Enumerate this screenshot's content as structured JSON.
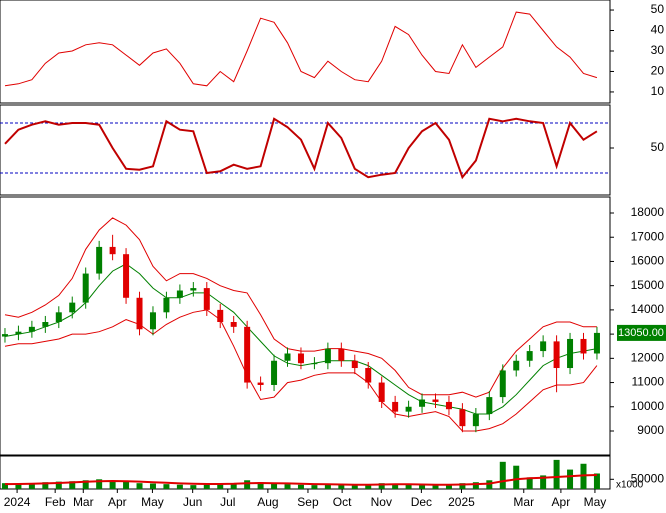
{
  "chart_data": [
    {
      "type": "line",
      "color": "#e00000",
      "values": [
        13,
        14,
        16,
        24,
        29,
        30,
        33,
        34,
        33,
        28,
        23,
        29,
        31,
        24,
        14,
        13,
        20,
        15,
        30,
        46,
        44,
        34,
        20,
        17,
        25,
        20,
        16,
        15,
        25,
        42,
        38,
        28,
        20,
        19,
        33,
        22,
        27,
        32,
        49,
        48,
        40,
        32,
        27,
        19,
        17
      ],
      "ylim": [
        4.6,
        54.9
      ],
      "yticks": [
        10,
        20,
        30,
        40,
        50
      ]
    },
    {
      "type": "line",
      "color": "#c00000",
      "values": [
        55,
        72,
        78,
        82,
        78,
        80,
        80,
        78,
        50,
        25,
        24,
        28,
        82,
        72,
        70,
        20,
        22,
        30,
        25,
        28,
        85,
        75,
        60,
        25,
        80,
        62,
        25,
        15,
        18,
        20,
        50,
        70,
        80,
        60,
        15,
        35,
        85,
        82,
        85,
        82,
        80,
        28,
        80,
        60,
        70
      ],
      "ylim": [
        -6.4,
        101.6
      ],
      "yticks": [
        50
      ],
      "levels": [
        80,
        20
      ],
      "level_color": "#0000c0"
    },
    {
      "type": "candlestick",
      "up_color": "#008000",
      "down_color": "#e00000",
      "open": [
        12900,
        13000,
        13100,
        13300,
        13500,
        13900,
        14300,
        15500,
        16600,
        16300,
        14500,
        13200,
        13900,
        14500,
        14800,
        14900,
        14000,
        13500,
        13300,
        11000,
        10900,
        11900,
        12200,
        11800,
        11800,
        12400,
        11900,
        11600,
        11000,
        10200,
        9800,
        10000,
        10300,
        10200,
        9900,
        9200,
        9700,
        10400,
        11500,
        11900,
        12300,
        12700,
        11600,
        12800,
        12200
      ],
      "high": [
        13250,
        13350,
        13550,
        13750,
        14150,
        14550,
        15750,
        16850,
        17100,
        16550,
        14750,
        14150,
        14750,
        15050,
        15150,
        15150,
        14250,
        13750,
        13550,
        11250,
        12150,
        12450,
        12450,
        12050,
        12650,
        12650,
        12150,
        11850,
        11250,
        10450,
        10250,
        10550,
        10550,
        10450,
        10150,
        9950,
        10650,
        11750,
        12150,
        12550,
        12950,
        12950,
        13050,
        13050,
        13300
      ],
      "low": [
        12650,
        12750,
        12850,
        13050,
        13250,
        13650,
        14050,
        15250,
        16050,
        14250,
        12950,
        12950,
        13650,
        14250,
        14550,
        13750,
        13250,
        13050,
        10750,
        10650,
        10650,
        11650,
        11550,
        11550,
        11550,
        11650,
        11350,
        10750,
        9950,
        9550,
        9550,
        9750,
        9950,
        9650,
        8950,
        8950,
        9450,
        10150,
        11250,
        11650,
        12050,
        10600,
        11350,
        11950,
        11950
      ],
      "close": [
        13000,
        13100,
        13300,
        13500,
        13900,
        14300,
        15500,
        16600,
        16300,
        14500,
        13200,
        13900,
        14500,
        14800,
        14900,
        14000,
        13500,
        13300,
        11000,
        10900,
        11900,
        12200,
        11800,
        11800,
        12400,
        11900,
        11600,
        11000,
        10200,
        9800,
        10000,
        10300,
        10200,
        9900,
        9200,
        9700,
        10400,
        11500,
        11900,
        12300,
        12700,
        11600,
        12800,
        12200,
        13050
      ],
      "overlays": [
        {
          "color": "#008000",
          "values": [
            12900,
            13000,
            13100,
            13300,
            13500,
            13800,
            14300,
            15000,
            15600,
            15900,
            15500,
            14900,
            14500,
            14500,
            14700,
            14700,
            14300,
            13900,
            13300,
            12700,
            12100,
            11800,
            11700,
            11800,
            11900,
            11900,
            11900,
            11700,
            11300,
            10900,
            10500,
            10200,
            10100,
            10000,
            9900,
            9700,
            9700,
            10000,
            10500,
            11100,
            11700,
            12000,
            12200,
            12300,
            12400
          ]
        },
        {
          "color": "#e00000",
          "values": [
            13800,
            13700,
            13900,
            14200,
            14600,
            15300,
            16500,
            17300,
            17800,
            17500,
            16900,
            15800,
            15200,
            15500,
            15500,
            15300,
            15000,
            14800,
            14700,
            13800,
            12800,
            12400,
            12300,
            12300,
            12400,
            12400,
            12300,
            12200,
            12000,
            11500,
            10800,
            10500,
            10500,
            10500,
            10600,
            10400,
            10600,
            11600,
            12300,
            12800,
            13300,
            13500,
            13500,
            13300,
            13300
          ]
        },
        {
          "color": "#e00000",
          "values": [
            12500,
            12600,
            12600,
            12700,
            12800,
            13000,
            13000,
            13100,
            13300,
            13600,
            13400,
            13000,
            13400,
            13700,
            13900,
            14000,
            13600,
            12500,
            11300,
            10300,
            10400,
            11000,
            11100,
            11300,
            11400,
            11400,
            11400,
            11000,
            10200,
            9700,
            9600,
            9700,
            9800,
            9600,
            9000,
            9000,
            9100,
            9300,
            9700,
            10200,
            10700,
            10900,
            10900,
            11000,
            11700
          ]
        }
      ],
      "ylim": [
        8009,
        18661
      ],
      "yticks": [
        9000,
        10000,
        11000,
        12000,
        13000,
        14000,
        15000,
        16000,
        17000,
        18000
      ],
      "last_price": {
        "value": 13050,
        "label": "13050.00"
      },
      "last_price_color": "#008000"
    },
    {
      "type": "bar",
      "color": "#008000",
      "values": [
        30000,
        25000,
        28000,
        35000,
        38000,
        40000,
        45000,
        50000,
        42000,
        38000,
        30000,
        28000,
        25000,
        22000,
        20000,
        22000,
        25000,
        30000,
        45000,
        35000,
        28000,
        25000,
        22000,
        20000,
        24000,
        22000,
        20000,
        25000,
        30000,
        28000,
        22000,
        20000,
        18000,
        22000,
        30000,
        35000,
        45000,
        140000,
        120000,
        60000,
        70000,
        150000,
        100000,
        130000,
        80000
      ],
      "overlays": [
        {
          "color": "#e00000",
          "values": [
            25000,
            26000,
            27000,
            29000,
            31000,
            34000,
            37000,
            40000,
            41000,
            40000,
            38000,
            35000,
            32000,
            29000,
            27000,
            26000,
            26000,
            27000,
            30000,
            31000,
            30000,
            29000,
            27000,
            25000,
            24000,
            23000,
            22000,
            22000,
            23000,
            24000,
            24000,
            23000,
            22000,
            22000,
            23000,
            25000,
            28000,
            40000,
            50000,
            55000,
            58000,
            62000,
            66000,
            70000,
            72000
          ]
        }
      ],
      "ylim": [
        0,
        170000
      ],
      "yticks": [
        50000
      ],
      "unit_label": "x1000",
      "xlim": [
        -0.37,
        44.97
      ],
      "xticks": [
        {
          "value": 0.9,
          "label": "2024"
        },
        {
          "value": 3.73,
          "label": "Feb"
        },
        {
          "value": 5.82,
          "label": "Mar"
        },
        {
          "value": 8.35,
          "label": "Apr"
        },
        {
          "value": 10.96,
          "label": "May"
        },
        {
          "value": 13.95,
          "label": "Jun"
        },
        {
          "value": 16.56,
          "label": "Jul"
        },
        {
          "value": 19.54,
          "label": "Aug"
        },
        {
          "value": 22.52,
          "label": "Sep"
        },
        {
          "value": 25.06,
          "label": "Oct"
        },
        {
          "value": 27.97,
          "label": "Nov"
        },
        {
          "value": 30.95,
          "label": "Dec"
        },
        {
          "value": 33.93,
          "label": "2025"
        },
        {
          "value": 38.56,
          "label": "Mar"
        },
        {
          "value": 41.32,
          "label": "Apr"
        },
        {
          "value": 43.85,
          "label": "May"
        }
      ]
    }
  ]
}
